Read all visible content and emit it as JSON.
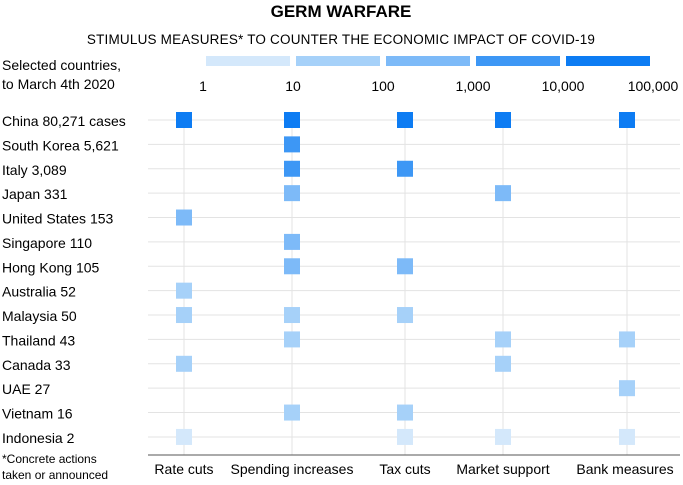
{
  "colors": {
    "scale": [
      "#d4e8fb",
      "#a6d1f9",
      "#7dbaf8",
      "#3d97f5",
      "#0d7cf3"
    ],
    "grid": "#e3e3e3",
    "baseline": "#555555"
  },
  "chart_data": {
    "type": "scatter",
    "title": "GERM WARFARE",
    "subtitle": "STIMULUS MEASURES* TO COUNTER THE ECONOMIC IMPACT OF COVID-19",
    "countries_header_line1": "Selected countries,",
    "countries_header_line2": "to March 4th 2020",
    "legend": {
      "tick_labels": [
        "1",
        "10",
        "100",
        "1,000",
        "10,000",
        "100,000"
      ],
      "bins": 5,
      "label": "cases"
    },
    "categories": [
      "Rate cuts",
      "Spending increases",
      "Tax cuts",
      "Market support",
      "Bank  measures"
    ],
    "rows": [
      {
        "label": "China 80,271 cases",
        "cases": 80271,
        "measures": [
          true,
          true,
          true,
          true,
          true
        ]
      },
      {
        "label": "South Korea 5,621",
        "cases": 5621,
        "measures": [
          false,
          true,
          false,
          false,
          false
        ]
      },
      {
        "label": "Italy 3,089",
        "cases": 3089,
        "measures": [
          false,
          true,
          true,
          false,
          false
        ]
      },
      {
        "label": "Japan 331",
        "cases": 331,
        "measures": [
          false,
          true,
          false,
          true,
          false
        ]
      },
      {
        "label": "United States 153",
        "cases": 153,
        "measures": [
          true,
          false,
          false,
          false,
          false
        ]
      },
      {
        "label": "Singapore 110",
        "cases": 110,
        "measures": [
          false,
          true,
          false,
          false,
          false
        ]
      },
      {
        "label": "Hong Kong 105",
        "cases": 105,
        "measures": [
          false,
          true,
          true,
          false,
          false
        ]
      },
      {
        "label": "Australia 52",
        "cases": 52,
        "measures": [
          true,
          false,
          false,
          false,
          false
        ]
      },
      {
        "label": "Malaysia 50",
        "cases": 50,
        "measures": [
          true,
          true,
          true,
          false,
          false
        ]
      },
      {
        "label": "Thailand 43",
        "cases": 43,
        "measures": [
          false,
          true,
          false,
          true,
          true
        ]
      },
      {
        "label": "Canada 33",
        "cases": 33,
        "measures": [
          true,
          false,
          false,
          true,
          false
        ]
      },
      {
        "label": "UAE 27",
        "cases": 27,
        "measures": [
          false,
          false,
          false,
          false,
          true
        ]
      },
      {
        "label": "Vietnam 16",
        "cases": 16,
        "measures": [
          false,
          true,
          true,
          false,
          false
        ]
      },
      {
        "label": "Indonesia 2",
        "cases": 2,
        "measures": [
          true,
          false,
          true,
          true,
          true
        ]
      }
    ],
    "footnote_line1": "*Concrete actions",
    "footnote_line2": "taken or announced"
  }
}
